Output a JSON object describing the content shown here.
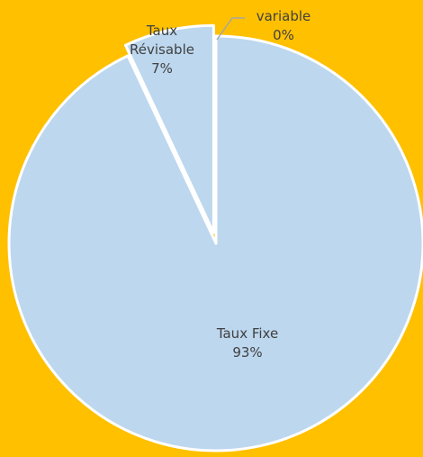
{
  "chart_data": {
    "type": "pie",
    "categories": [
      "Taux Fixe",
      "Taux Révisable",
      "variable"
    ],
    "values": [
      93,
      7,
      0
    ],
    "value_labels": [
      "93%",
      "7%",
      "0%"
    ],
    "color": "#BDD7EE",
    "exploded": [
      false,
      true,
      false
    ]
  }
}
